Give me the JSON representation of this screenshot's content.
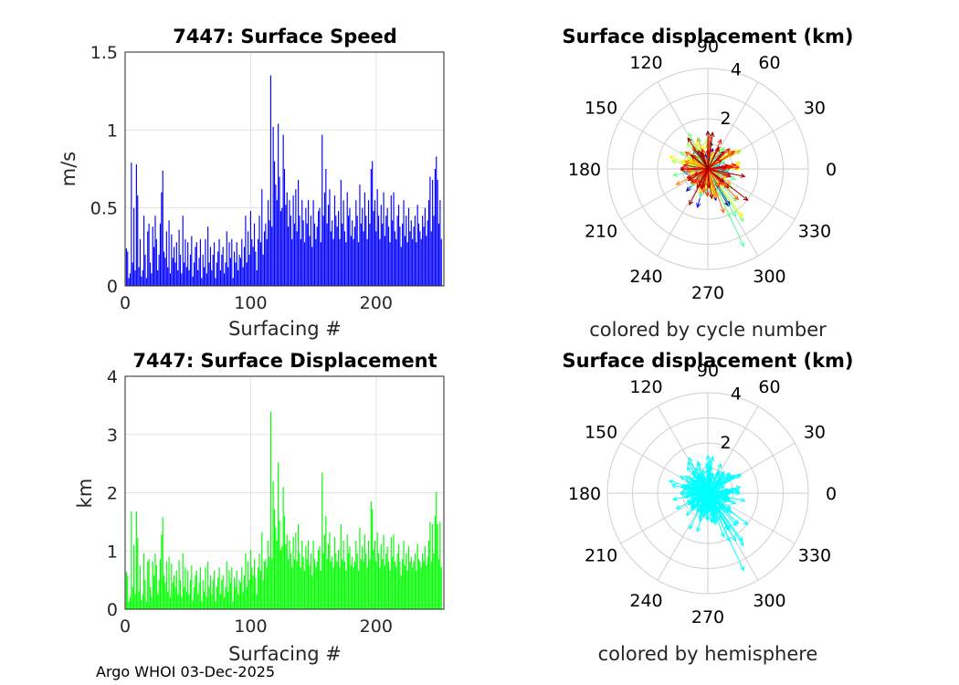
{
  "footer": "Argo WHOI 03-Dec-2025",
  "chart_data": [
    {
      "type": "bar",
      "title": "7447: Surface Speed",
      "xlabel": "Surfacing #",
      "ylabel": "m/s",
      "xlim": [
        0,
        254
      ],
      "ylim": [
        0,
        1.5
      ],
      "xticks": [
        "0",
        "100",
        "200"
      ],
      "yticks": [
        "0",
        "0.5",
        "1",
        "1.5"
      ],
      "grid": true,
      "color": "#0000ff",
      "values": [
        0.24,
        0.22,
        0.05,
        0.08,
        0.79,
        0.15,
        0.5,
        0.1,
        0.78,
        0.58,
        0.12,
        0.3,
        0.06,
        0.1,
        0.45,
        0.2,
        0.05,
        0.35,
        0.4,
        0.15,
        0.08,
        0.38,
        0.25,
        0.45,
        0.3,
        0.1,
        0.2,
        0.4,
        0.6,
        0.74,
        0.22,
        0.18,
        0.35,
        0.12,
        0.42,
        0.08,
        0.33,
        0.18,
        0.25,
        0.15,
        0.28,
        0.1,
        0.36,
        0.2,
        0.08,
        0.45,
        0.15,
        0.3,
        0.12,
        0.28,
        0.1,
        0.2,
        0.32,
        0.06,
        0.15,
        0.25,
        0.28,
        0.1,
        0.18,
        0.3,
        0.05,
        0.2,
        0.12,
        0.3,
        0.08,
        0.38,
        0.15,
        0.25,
        0.1,
        0.2,
        0.28,
        0.05,
        0.15,
        0.22,
        0.3,
        0.1,
        0.2,
        0.25,
        0.08,
        0.15,
        0.35,
        0.12,
        0.28,
        0.18,
        0.3,
        0.05,
        0.22,
        0.15,
        0.28,
        0.1,
        0.2,
        0.18,
        0.3,
        0.12,
        0.25,
        0.45,
        0.15,
        0.35,
        0.2,
        0.48,
        0.3,
        0.25,
        0.4,
        0.22,
        0.1,
        0.3,
        0.45,
        0.28,
        0.62,
        0.2,
        0.35,
        0.4,
        0.3,
        0.55,
        0.42,
        1.35,
        0.38,
        1.02,
        0.8,
        0.65,
        0.55,
        1.04,
        0.7,
        0.48,
        0.5,
        0.97,
        0.75,
        0.52,
        0.6,
        0.38,
        0.55,
        0.45,
        0.3,
        0.58,
        0.4,
        0.62,
        0.35,
        0.68,
        0.45,
        0.3,
        0.55,
        0.42,
        0.28,
        0.5,
        0.4,
        0.55,
        0.32,
        0.45,
        0.25,
        0.55,
        0.4,
        0.3,
        0.38,
        0.48,
        0.5,
        0.28,
        0.97,
        0.45,
        0.6,
        0.75,
        0.4,
        0.52,
        0.62,
        0.35,
        0.42,
        0.3,
        0.58,
        0.45,
        0.38,
        0.48,
        0.3,
        0.68,
        0.4,
        0.55,
        0.35,
        0.28,
        0.6,
        0.45,
        0.5,
        0.32,
        0.42,
        0.3,
        0.38,
        0.55,
        0.45,
        0.28,
        0.65,
        0.4,
        0.5,
        0.35,
        0.6,
        0.45,
        0.3,
        0.55,
        0.4,
        0.75,
        0.8,
        0.48,
        0.55,
        0.35,
        0.62,
        0.45,
        0.3,
        0.52,
        0.4,
        0.6,
        0.32,
        0.45,
        0.5,
        0.38,
        0.28,
        0.58,
        0.42,
        0.6,
        0.35,
        0.3,
        0.45,
        0.52,
        0.38,
        0.25,
        0.4,
        0.55,
        0.32,
        0.45,
        0.28,
        0.5,
        0.35,
        0.42,
        0.3,
        0.38,
        0.45,
        0.28,
        0.52,
        0.4,
        0.35,
        0.3,
        0.45,
        0.38,
        0.5,
        0.32,
        0.42,
        0.55,
        0.7,
        0.35,
        0.68,
        0.45,
        0.75,
        0.83,
        0.68,
        0.4,
        0.55,
        0.3
      ]
    },
    {
      "type": "polar",
      "title": "Surface displacement (km)",
      "caption": "colored by cycle number",
      "angle_ticks": [
        "0",
        "30",
        "60",
        "90",
        "120",
        "150",
        "180",
        "210",
        "240",
        "270",
        "300",
        "330"
      ],
      "radial_ticks": [
        "2",
        "4"
      ],
      "rmax": 4,
      "colormap": "jet",
      "note": "arrows from origin for each surfacing, angle in degrees, length in km"
    },
    {
      "type": "bar",
      "title": "7447: Surface Displacement",
      "xlabel": "Surfacing #",
      "ylabel": "km",
      "xlim": [
        0,
        254
      ],
      "ylim": [
        0,
        4
      ],
      "xticks": [
        "0",
        "100",
        "200"
      ],
      "yticks": [
        "0",
        "1",
        "2",
        "3",
        "4"
      ],
      "grid": true,
      "color": "#00ff00",
      "values": [
        0.64,
        0.58,
        0.13,
        0.21,
        1.68,
        0.38,
        1.1,
        0.26,
        1.68,
        1.22,
        0.3,
        0.75,
        0.15,
        0.26,
        0.96,
        0.5,
        0.13,
        0.82,
        0.86,
        0.38,
        0.21,
        0.82,
        0.58,
        0.96,
        0.75,
        0.26,
        0.5,
        0.86,
        1.28,
        1.58,
        0.58,
        0.46,
        0.82,
        0.3,
        0.9,
        0.21,
        0.78,
        0.46,
        0.58,
        0.38,
        0.66,
        0.26,
        0.84,
        0.5,
        0.21,
        0.96,
        0.38,
        0.72,
        0.3,
        0.66,
        0.26,
        0.5,
        0.75,
        0.15,
        0.38,
        0.58,
        0.66,
        0.26,
        0.46,
        0.72,
        0.13,
        0.5,
        0.3,
        0.72,
        0.21,
        0.82,
        0.38,
        0.58,
        0.26,
        0.5,
        0.66,
        0.13,
        0.38,
        0.54,
        0.72,
        0.26,
        0.5,
        0.58,
        0.21,
        0.38,
        0.82,
        0.3,
        0.66,
        0.46,
        0.72,
        0.13,
        0.54,
        0.38,
        0.66,
        0.26,
        0.5,
        0.46,
        0.72,
        0.3,
        0.58,
        0.96,
        0.38,
        0.82,
        0.5,
        1.02,
        0.72,
        0.58,
        0.86,
        0.54,
        0.26,
        0.72,
        0.96,
        0.66,
        1.32,
        0.5,
        0.82,
        0.86,
        0.72,
        1.18,
        0.9,
        3.39,
        0.86,
        2.2,
        1.72,
        1.4,
        1.18,
        2.52,
        1.52,
        1.02,
        1.08,
        2.1,
        1.6,
        1.12,
        1.28,
        0.86,
        1.18,
        0.96,
        0.72,
        1.24,
        0.86,
        1.32,
        0.82,
        1.46,
        0.96,
        0.72,
        1.18,
        0.9,
        0.66,
        1.08,
        0.86,
        1.18,
        0.75,
        0.96,
        0.58,
        1.18,
        0.86,
        0.72,
        0.82,
        1.02,
        1.08,
        0.66,
        2.35,
        0.96,
        1.28,
        1.6,
        0.86,
        1.12,
        1.32,
        0.82,
        0.9,
        0.72,
        1.24,
        0.96,
        0.82,
        1.02,
        0.72,
        1.46,
        0.86,
        1.18,
        0.82,
        0.66,
        1.28,
        0.96,
        1.08,
        0.75,
        0.9,
        0.72,
        0.82,
        1.18,
        0.96,
        0.66,
        1.4,
        0.86,
        1.08,
        0.82,
        1.28,
        0.96,
        0.72,
        1.18,
        0.86,
        1.85,
        1.72,
        1.02,
        1.18,
        0.82,
        1.32,
        0.96,
        0.72,
        1.12,
        0.86,
        1.28,
        0.75,
        0.96,
        1.08,
        0.82,
        0.66,
        1.24,
        0.9,
        1.28,
        0.82,
        0.72,
        0.96,
        1.12,
        0.82,
        0.58,
        0.86,
        1.18,
        0.75,
        0.96,
        0.66,
        1.08,
        0.82,
        0.9,
        0.72,
        0.82,
        0.96,
        0.66,
        1.12,
        0.86,
        0.82,
        0.72,
        0.96,
        0.82,
        1.08,
        0.75,
        0.9,
        1.18,
        1.5,
        0.82,
        1.46,
        0.96,
        1.6,
        2.02,
        1.46,
        0.86,
        1.5,
        0.72
      ]
    },
    {
      "type": "polar",
      "title": "Surface displacement (km)",
      "caption": "colored by hemisphere",
      "angle_ticks": [
        "0",
        "30",
        "60",
        "90",
        "120",
        "150",
        "180",
        "210",
        "240",
        "270",
        "300",
        "330"
      ],
      "radial_ticks": [
        "2",
        "4"
      ],
      "rmax": 4,
      "color": "#00ffff",
      "note": "arrows from origin for each surfacing, angle in degrees, length in km"
    }
  ]
}
